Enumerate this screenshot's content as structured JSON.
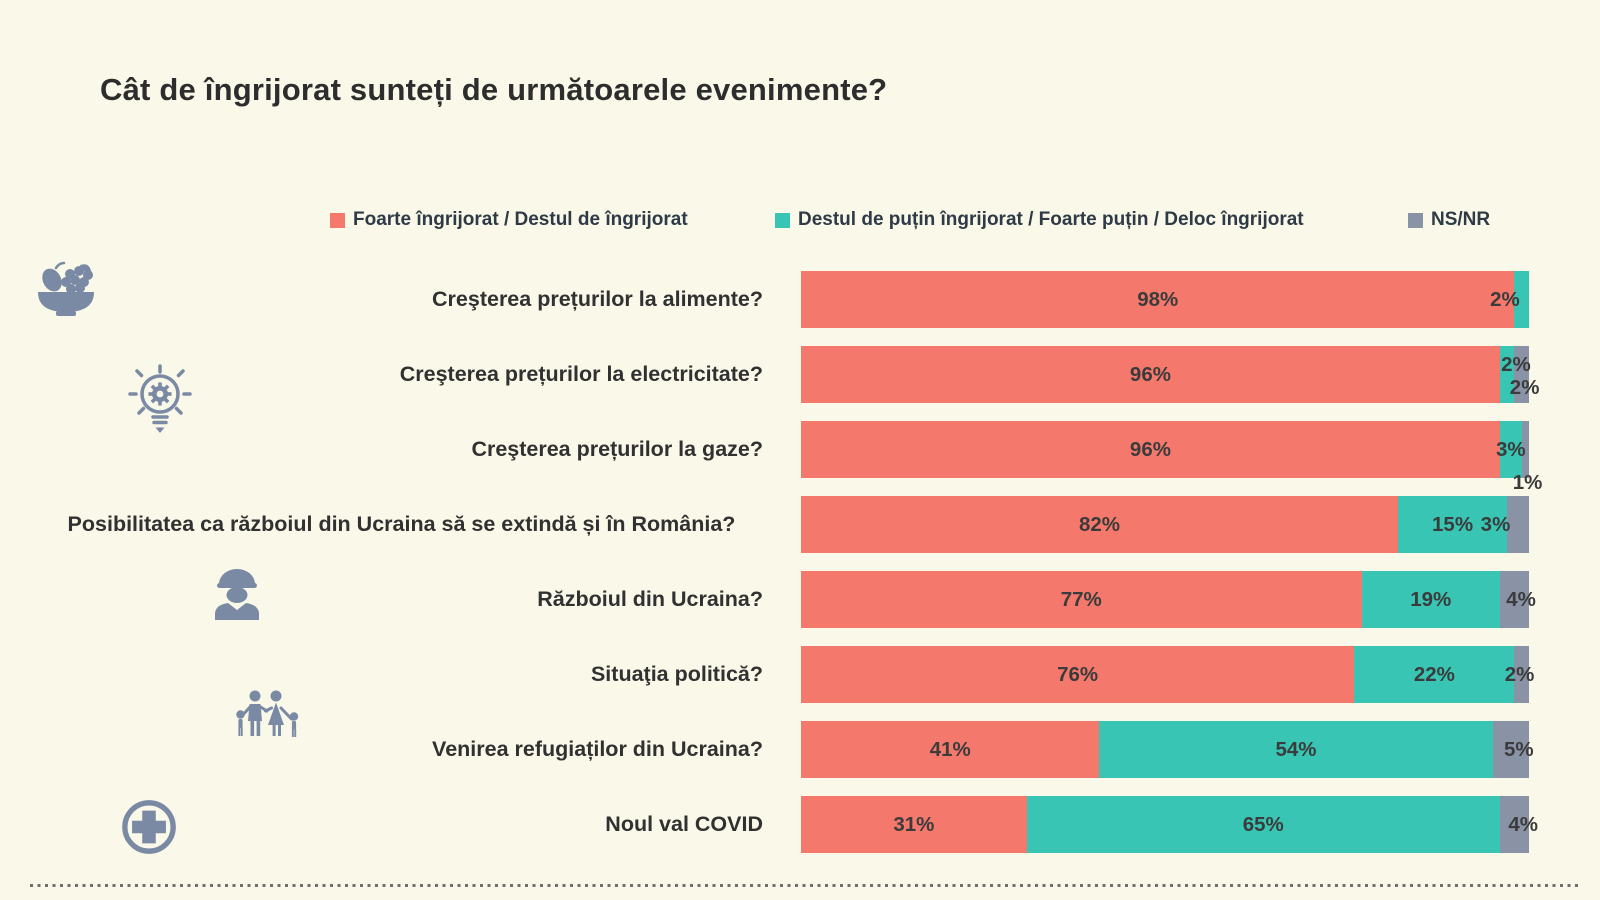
{
  "title": "Cât de îngrijorat sunteți de următoarele evenimente?",
  "colors": {
    "worried": "#F4786B",
    "not_worried": "#38C5B4",
    "nsnr": "#8A92A6",
    "background": "#FAF8E8",
    "icon": "#7A89A4",
    "text": "#313131"
  },
  "legend": [
    {
      "label": "Foarte îngrijorat / Destul de îngrijorat",
      "color_key": "worried"
    },
    {
      "label": "Destul de puțin îngrijorat / Foarte puțin / Deloc îngrijorat",
      "color_key": "not_worried"
    },
    {
      "label": "NS/NR",
      "color_key": "nsnr"
    }
  ],
  "chart_data": {
    "type": "bar",
    "orientation": "horizontal",
    "stacked": true,
    "title": "Cât de îngrijorat sunteți de următoarele evenimente?",
    "xlim": [
      0,
      100
    ],
    "value_suffix": "%",
    "grid": false,
    "legend_position": "top",
    "series_names": [
      "Foarte îngrijorat / Destul de îngrijorat",
      "Destul de puțin îngrijorat / Foarte puțin / Deloc îngrijorat",
      "NS/NR"
    ],
    "categories": [
      "Creşterea prețurilor la alimente?",
      "Creşterea prețurilor la electricitate?",
      "Creşterea prețurilor la gaze?",
      "Posibilitatea ca războiul din Ucraina să se extindă și în România?",
      "Războiul din Ucraina?",
      "Situaţia politică?",
      "Venirea refugiaților din Ucraina?",
      "Noul val COVID"
    ],
    "series": [
      {
        "name": "Foarte îngrijorat / Destul de îngrijorat",
        "values": [
          98,
          96,
          96,
          82,
          77,
          76,
          41,
          31
        ]
      },
      {
        "name": "Destul de puțin îngrijorat / Foarte puțin / Deloc îngrijorat",
        "values": [
          2,
          2,
          3,
          15,
          19,
          22,
          54,
          65
        ]
      },
      {
        "name": "NS/NR",
        "values": [
          0,
          2,
          1,
          3,
          4,
          2,
          5,
          4
        ]
      }
    ],
    "rows": [
      {
        "category": "Creşterea prețurilor la alimente?",
        "values": [
          98,
          2,
          0
        ],
        "labels": [
          {
            "text": "98%",
            "pos": "seg1"
          },
          {
            "text": "2%",
            "pos": "end",
            "at": 96.7,
            "v": "middle"
          }
        ]
      },
      {
        "category": "Creşterea prețurilor la electricitate?",
        "values": [
          96,
          2,
          2
        ],
        "labels": [
          {
            "text": "96%",
            "pos": "seg1"
          },
          {
            "text": "2%",
            "pos": "end",
            "at": 98.2,
            "v": "top"
          },
          {
            "text": "2%",
            "pos": "end",
            "at": 99.4,
            "v": "bottom"
          }
        ]
      },
      {
        "category": "Creşterea prețurilor la gaze?",
        "values": [
          96,
          3,
          1
        ],
        "labels": [
          {
            "text": "96%",
            "pos": "seg1"
          },
          {
            "text": "3%",
            "pos": "end",
            "at": 97.5,
            "v": "middle"
          },
          {
            "text": "1%",
            "pos": "end",
            "at": 99.8,
            "v": "below"
          }
        ]
      },
      {
        "category": "Posibilitatea ca războiul din Ucraina să se extindă și în România?",
        "values": [
          82,
          15,
          3
        ],
        "two_line": true,
        "labels": [
          {
            "text": "82%",
            "pos": "seg1"
          },
          {
            "text": "15%",
            "pos": "seg2"
          },
          {
            "text": "3%",
            "pos": "end",
            "at": 95.4,
            "v": "middle"
          }
        ]
      },
      {
        "category": "Războiul din Ucraina?",
        "values": [
          77,
          19,
          4
        ],
        "labels": [
          {
            "text": "77%",
            "pos": "seg1"
          },
          {
            "text": "19%",
            "pos": "seg2"
          },
          {
            "text": "4%",
            "pos": "end",
            "at": 98.9,
            "v": "middle"
          }
        ]
      },
      {
        "category": "Situaţia politică?",
        "values": [
          76,
          22,
          2
        ],
        "labels": [
          {
            "text": "76%",
            "pos": "seg1"
          },
          {
            "text": "22%",
            "pos": "seg2"
          },
          {
            "text": "2%",
            "pos": "end",
            "at": 98.7,
            "v": "middle"
          }
        ]
      },
      {
        "category": "Venirea refugiaților din Ucraina?",
        "values": [
          41,
          54,
          5
        ],
        "labels": [
          {
            "text": "41%",
            "pos": "seg1"
          },
          {
            "text": "54%",
            "pos": "seg2"
          },
          {
            "text": "5%",
            "pos": "end",
            "at": 98.6,
            "v": "middle"
          }
        ]
      },
      {
        "category": "Noul val COVID",
        "values": [
          31,
          65,
          4
        ],
        "labels": [
          {
            "text": "31%",
            "pos": "seg1"
          },
          {
            "text": "65%",
            "pos": "seg2"
          },
          {
            "text": "4%",
            "pos": "end",
            "at": 99.2,
            "v": "middle"
          }
        ]
      }
    ],
    "icons": [
      "fruit-basket",
      "lightbulb-gear",
      "soldier",
      "family",
      "medical-cross"
    ]
  }
}
